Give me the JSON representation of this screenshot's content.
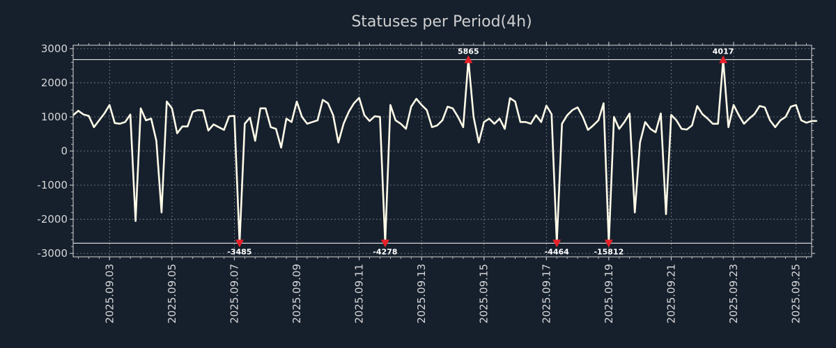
{
  "chart_data": {
    "type": "line",
    "title": "Statuses per Period(4h)",
    "xlabel": "",
    "ylabel": "",
    "ylim": [
      -3100,
      3100
    ],
    "xlim": [
      0,
      142
    ],
    "grid": true,
    "legend": "none",
    "colors": {
      "background": "#16202d",
      "line": "#fffbe8",
      "marker": "#e8202a",
      "grid": "#aeb4bc",
      "threshold": "#ffffff"
    },
    "y_ticks": [
      {
        "value": 3000,
        "label": "3000"
      },
      {
        "value": 2000,
        "label": "2000"
      },
      {
        "value": 1000,
        "label": "1000"
      },
      {
        "value": 0,
        "label": "0"
      },
      {
        "value": -1000,
        "label": "-1000"
      },
      {
        "value": -2000,
        "label": "-2000"
      },
      {
        "value": -3000,
        "label": "-3000"
      }
    ],
    "x_ticks": [
      {
        "value": 7,
        "label": "2025.09.03"
      },
      {
        "value": 19,
        "label": "2025.09.05"
      },
      {
        "value": 31,
        "label": "2025.09.07"
      },
      {
        "value": 43,
        "label": "2025.09.09"
      },
      {
        "value": 55,
        "label": "2025.09.11"
      },
      {
        "value": 67,
        "label": "2025.09.13"
      },
      {
        "value": 79,
        "label": "2025.09.15"
      },
      {
        "value": 91,
        "label": "2025.09.17"
      },
      {
        "value": 103,
        "label": "2025.09.19"
      },
      {
        "value": 115,
        "label": "2025.09.21"
      },
      {
        "value": 127,
        "label": "2025.09.23"
      },
      {
        "value": 139,
        "label": "2025.09.25"
      }
    ],
    "thresholds": [
      2680,
      -2700
    ],
    "series": [
      {
        "name": "Statuses",
        "values": [
          1050,
          1180,
          1070,
          1030,
          700,
          900,
          1100,
          1350,
          820,
          800,
          850,
          1070,
          -2050,
          1250,
          900,
          950,
          300,
          -1800,
          1450,
          1250,
          520,
          720,
          720,
          1150,
          1200,
          1190,
          600,
          780,
          700,
          620,
          1020,
          1030,
          -2700,
          800,
          980,
          300,
          1250,
          1250,
          700,
          650,
          100,
          950,
          850,
          1450,
          1000,
          800,
          850,
          900,
          1500,
          1400,
          1050,
          250,
          800,
          1150,
          1400,
          1560,
          1050,
          880,
          1020,
          1000,
          -2700,
          1350,
          900,
          800,
          650,
          1300,
          1530,
          1350,
          1200,
          700,
          750,
          900,
          1300,
          1250,
          1000,
          700,
          2680,
          1000,
          250,
          850,
          950,
          800,
          950,
          650,
          1550,
          1450,
          850,
          850,
          800,
          1050,
          850,
          1330,
          1080,
          -2700,
          800,
          1050,
          1200,
          1280,
          1000,
          620,
          750,
          900,
          1400,
          -2700,
          1000,
          650,
          850,
          1100,
          -1800,
          250,
          850,
          650,
          550,
          1100,
          -1850,
          1060,
          900,
          650,
          630,
          750,
          1320,
          1080,
          950,
          800,
          800,
          2680,
          700,
          1350,
          1050,
          800,
          950,
          1080,
          1320,
          1280,
          900,
          700,
          900,
          1000,
          1300,
          1350,
          900,
          830,
          880,
          880
        ]
      }
    ],
    "annotations": [
      {
        "x": 32,
        "marker": "down",
        "label": "-3485"
      },
      {
        "x": 60,
        "marker": "down",
        "label": "-4278"
      },
      {
        "x": 76,
        "marker": "up",
        "label": "5865"
      },
      {
        "x": 93,
        "marker": "down",
        "label": "-4464"
      },
      {
        "x": 103,
        "marker": "down",
        "label": "-15812"
      },
      {
        "x": 125,
        "marker": "up",
        "label": "4017"
      }
    ]
  }
}
